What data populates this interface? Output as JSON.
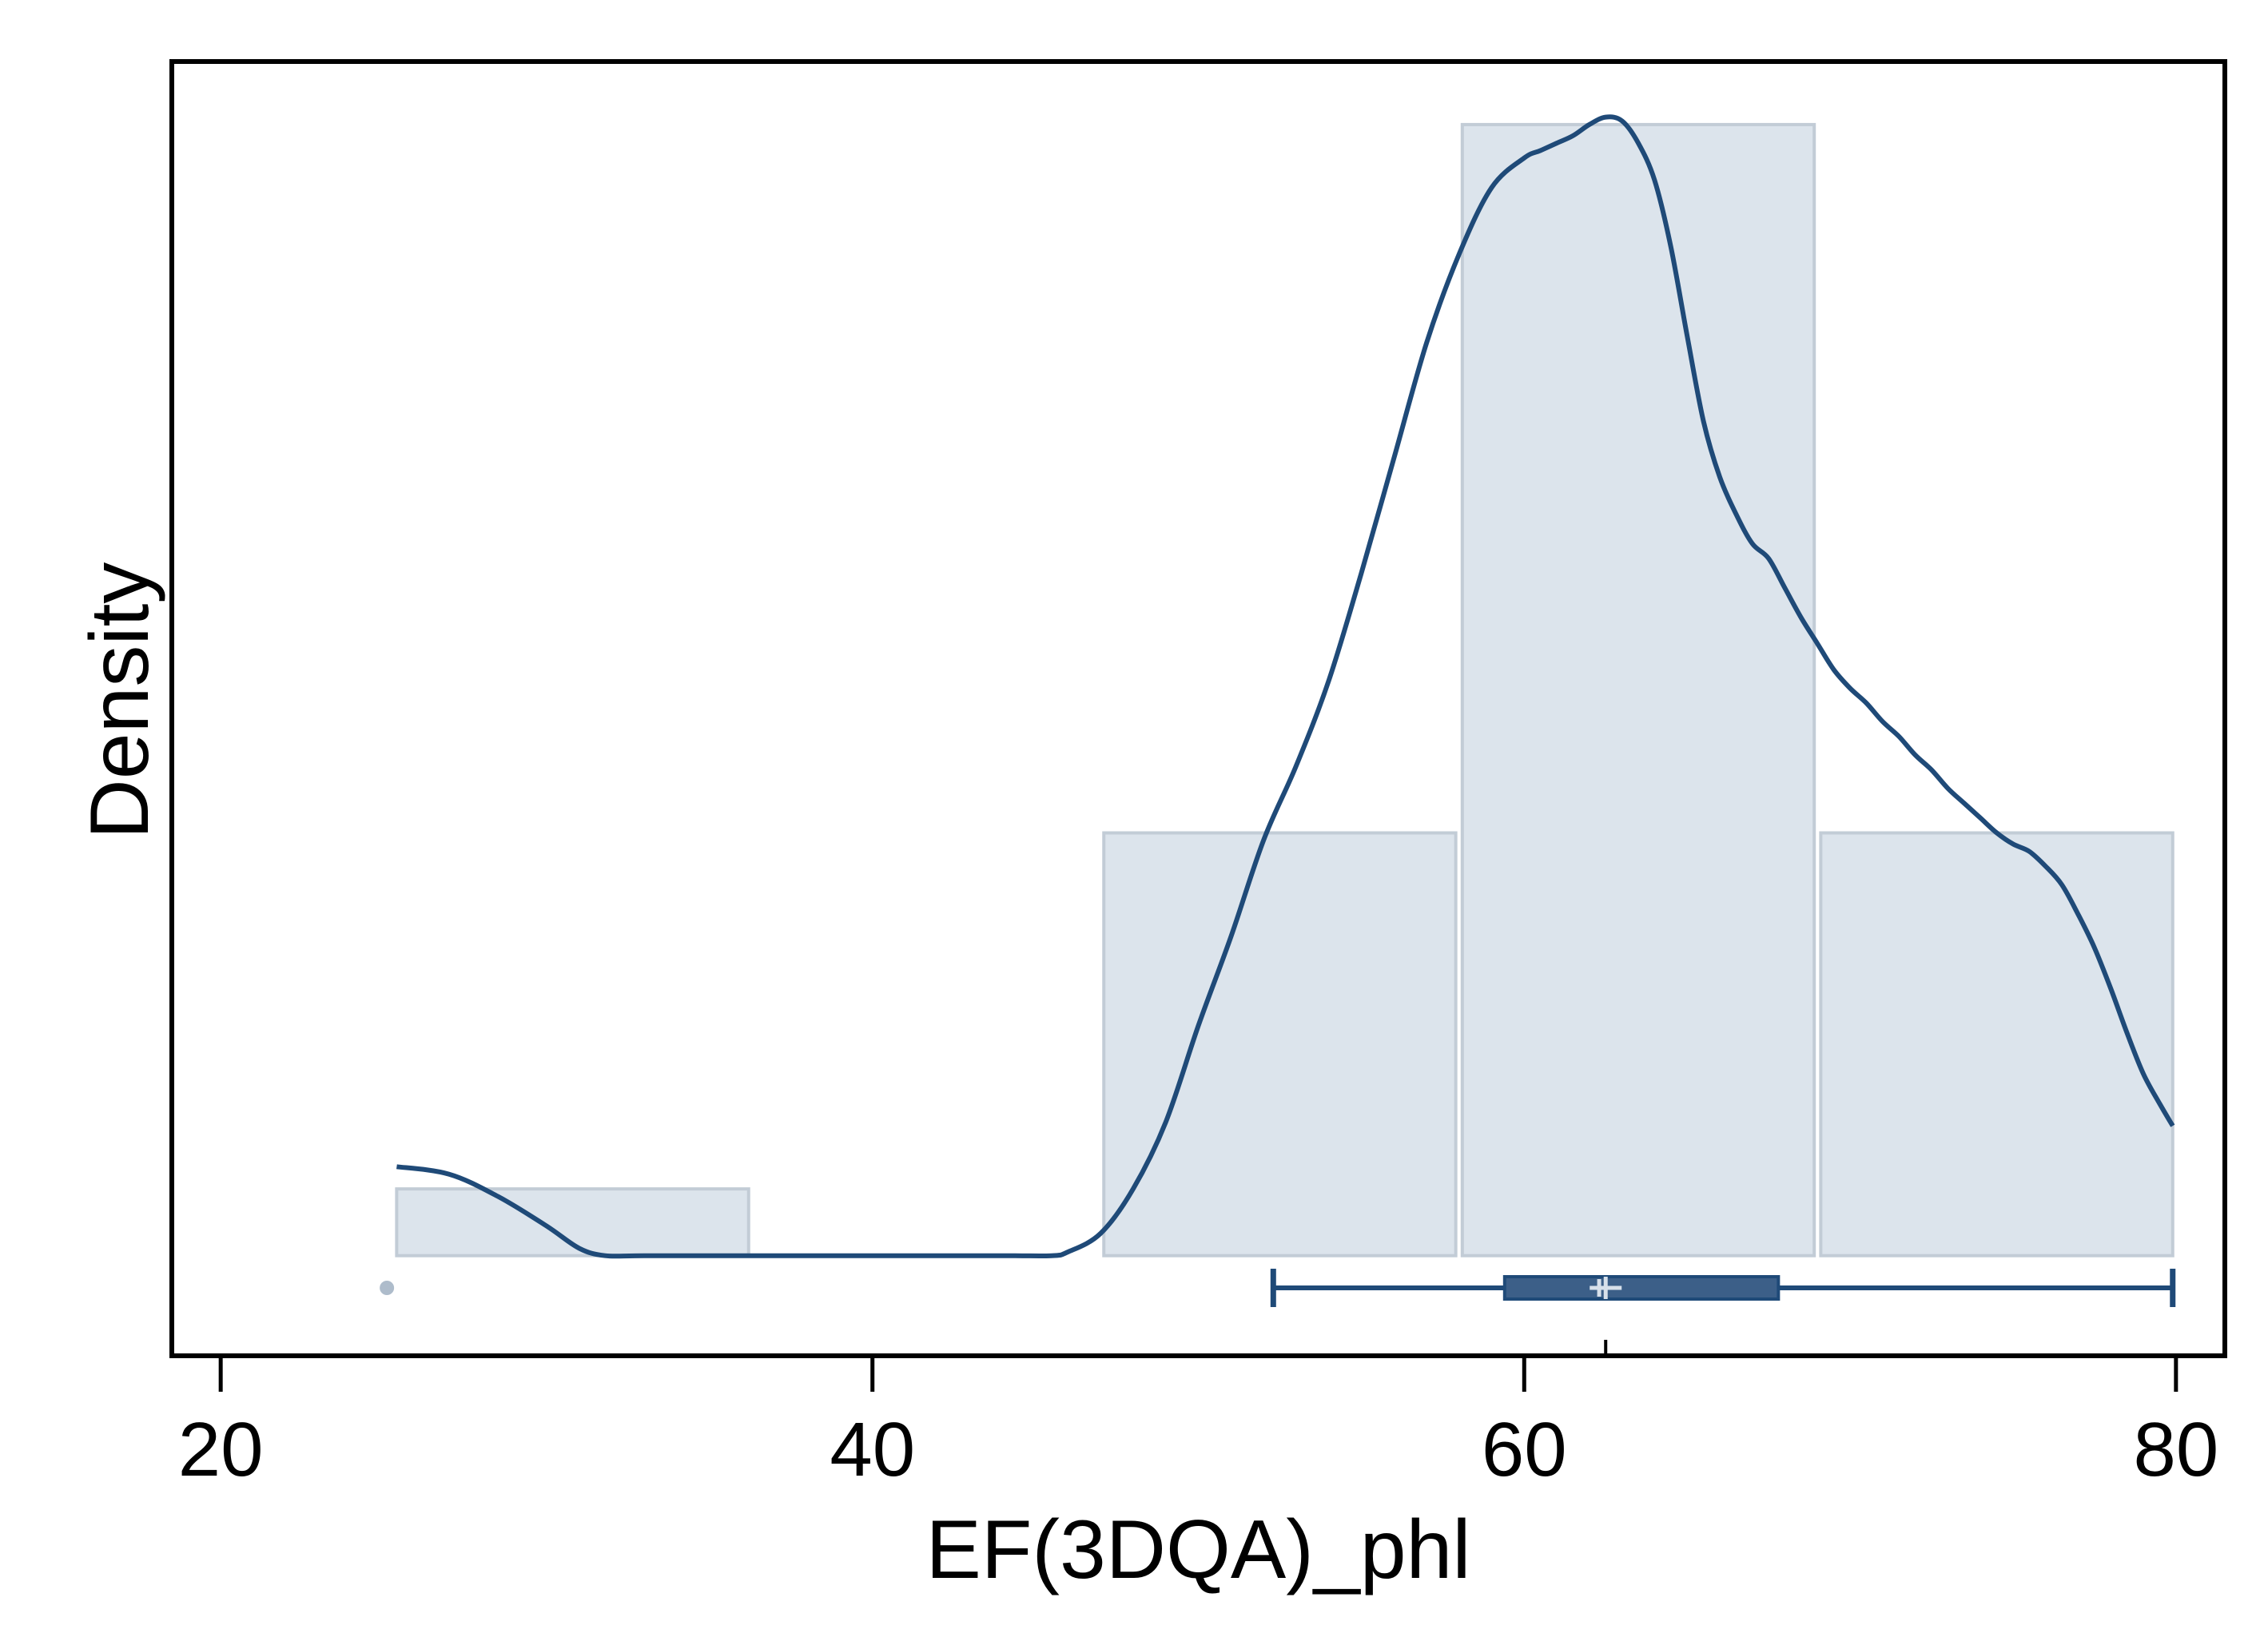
{
  "chart_data": {
    "type": "histogram",
    "xlabel": "EF(3DQA)_phl",
    "ylabel": "Density",
    "xlim": [
      18.5,
      81.5
    ],
    "ylim": [
      -0.0027,
      0.0322
    ],
    "xticks": [
      20,
      40,
      60,
      80
    ],
    "grid": false,
    "legend": "none",
    "colors": {
      "bar_fill": "#dce4ec",
      "bar_stroke": "#c2ccd6",
      "line": "#1f4a78",
      "box_fill": "#3c5f88",
      "outlier": "#aebccb",
      "frame": "#000000"
    },
    "bins": [
      {
        "start": 25.4,
        "end": 36.2,
        "density": 0.0018
      },
      {
        "start": 36.2,
        "end": 47.1,
        "density": 0.0
      },
      {
        "start": 47.1,
        "end": 57.9,
        "density": 0.0114
      },
      {
        "start": 58.1,
        "end": 68.9,
        "density": 0.0305
      },
      {
        "start": 69.1,
        "end": 79.9,
        "density": 0.0114
      }
    ],
    "density_curve": {
      "x": [
        25.4,
        27.0,
        28.5,
        30.0,
        31.0,
        31.8,
        33.0,
        36.0,
        40.0,
        44.0,
        45.5,
        46.0,
        47.0,
        48.0,
        49.0,
        50.0,
        51.0,
        52.0,
        53.0,
        54.0,
        55.0,
        56.0,
        57.0,
        58.0,
        59.0,
        60.0,
        60.5,
        61.0,
        61.5,
        62.0,
        62.5,
        63.0,
        63.5,
        64.0,
        64.5,
        65.0,
        65.5,
        66.0,
        66.5,
        67.0,
        67.5,
        68.0,
        68.5,
        69.0,
        69.5,
        70.0,
        70.5,
        71.0,
        71.5,
        72.0,
        72.5,
        73.0,
        73.5,
        74.0,
        74.5,
        75.0,
        75.5,
        76.0,
        76.5,
        77.0,
        77.5,
        78.0,
        78.5,
        79.0,
        79.5,
        79.9
      ],
      "y": [
        0.0024,
        0.0022,
        0.0016,
        0.0008,
        0.0002,
        0.0,
        0.0,
        0.0,
        0.0,
        0.0,
        0.0,
        0.0001,
        0.0006,
        0.0018,
        0.0036,
        0.0062,
        0.0086,
        0.0112,
        0.0132,
        0.0155,
        0.0184,
        0.0215,
        0.0246,
        0.027,
        0.0288,
        0.0296,
        0.0298,
        0.03,
        0.0302,
        0.0305,
        0.0307,
        0.0306,
        0.03,
        0.029,
        0.0272,
        0.0248,
        0.0225,
        0.021,
        0.02,
        0.0192,
        0.0188,
        0.018,
        0.0172,
        0.0165,
        0.0158,
        0.0153,
        0.0149,
        0.0144,
        0.014,
        0.0135,
        0.0131,
        0.0126,
        0.0122,
        0.0118,
        0.0114,
        0.0111,
        0.0109,
        0.0105,
        0.01,
        0.0092,
        0.0083,
        0.0072,
        0.006,
        0.0049,
        0.0041,
        0.0035
      ]
    },
    "boxplot": {
      "whisker_low": 52.3,
      "q1": 59.4,
      "median": 62.3,
      "mean": 62.5,
      "q3": 67.8,
      "whisker_high": 79.9,
      "outliers": [
        25.1
      ]
    },
    "rug_marks": [
      62.5
    ]
  }
}
